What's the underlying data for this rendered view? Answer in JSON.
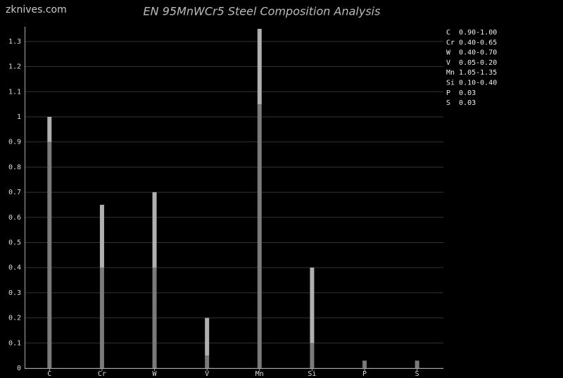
{
  "watermark": "zknives.com",
  "chart_data": {
    "type": "range_bar",
    "title": "EN 95MnWCr5 Steel Composition Analysis",
    "categories": [
      "C",
      "Cr",
      "W",
      "V",
      "Mn",
      "Si",
      "P",
      "S"
    ],
    "low": [
      0.9,
      0.4,
      0.4,
      0.05,
      1.05,
      0.1,
      0.03,
      0.03
    ],
    "high": [
      1.0,
      0.65,
      0.7,
      0.2,
      1.35,
      0.4,
      0.03,
      0.03
    ],
    "low_color": "#7a7a7a",
    "high_color": "#b0b0b0",
    "ylim": [
      0,
      1.35
    ],
    "yticks": [
      0,
      0.1,
      0.2,
      0.3,
      0.4,
      0.5,
      0.6,
      0.7,
      0.8,
      0.9,
      1,
      1.1,
      1.2,
      1.3
    ],
    "grid": true,
    "legend": [
      "C  0.90-1.00",
      "Cr 0.40-0.65",
      "W  0.40-0.70",
      "V  0.05-0.20",
      "Mn 1.05-1.35",
      "Si 0.10-0.40",
      "P  0.03",
      "S  0.03"
    ]
  }
}
